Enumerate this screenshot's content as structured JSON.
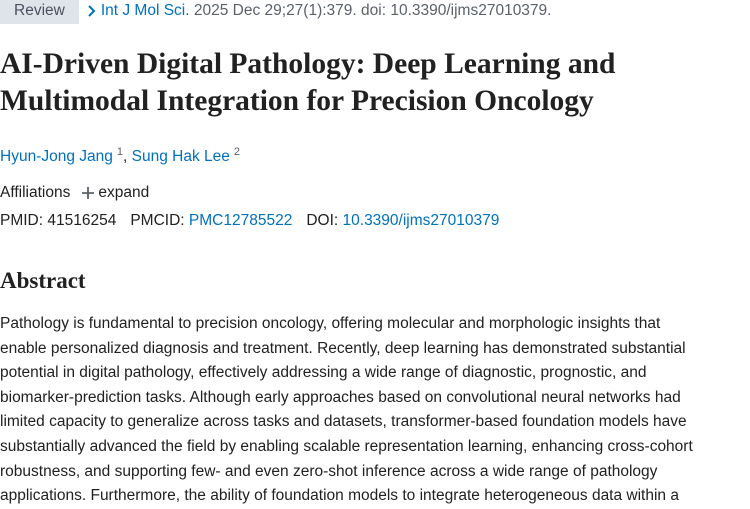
{
  "badge": "Review",
  "citation": {
    "journal": "Int J Mol Sci.",
    "details": "2025 Dec 29;27(1):379. doi: 10.3390/ijms27010379."
  },
  "title": "AI-Driven Digital Pathology: Deep Learning and Multimodal Integration for Precision Oncology",
  "authors": [
    {
      "name": "Hyun-Jong Jang",
      "affiliation": "1"
    },
    {
      "name": "Sung Hak Lee",
      "affiliation": "2"
    }
  ],
  "author_separator": ",",
  "affiliations": {
    "label": "Affiliations",
    "toggle": "expand"
  },
  "identifiers": [
    {
      "label": "PMID:",
      "value": "41516254"
    },
    {
      "label": "PMCID:",
      "value": "PMC12785522"
    },
    {
      "label": "DOI:",
      "value": "10.3390/ijms27010379"
    }
  ],
  "abstract": {
    "heading": "Abstract",
    "lines": [
      "Pathology is fundamental to precision oncology, offering molecular and morphologic insights that",
      "enable personalized diagnosis and treatment. Recently, deep learning has demonstrated substantial",
      "potential in digital pathology, effectively addressing a wide range of diagnostic, prognostic, and",
      "biomarker-prediction tasks. Although early approaches based on convolutional neural networks had",
      "limited capacity to generalize across tasks and datasets, transformer-based foundation models have",
      "substantially advanced the field by enabling scalable representation learning, enhancing cross-cohort",
      "robustness, and supporting few- and even zero-shot inference across a wide range of pathology",
      "applications. Furthermore, the ability of foundation models to integrate heterogeneous data within a"
    ]
  }
}
